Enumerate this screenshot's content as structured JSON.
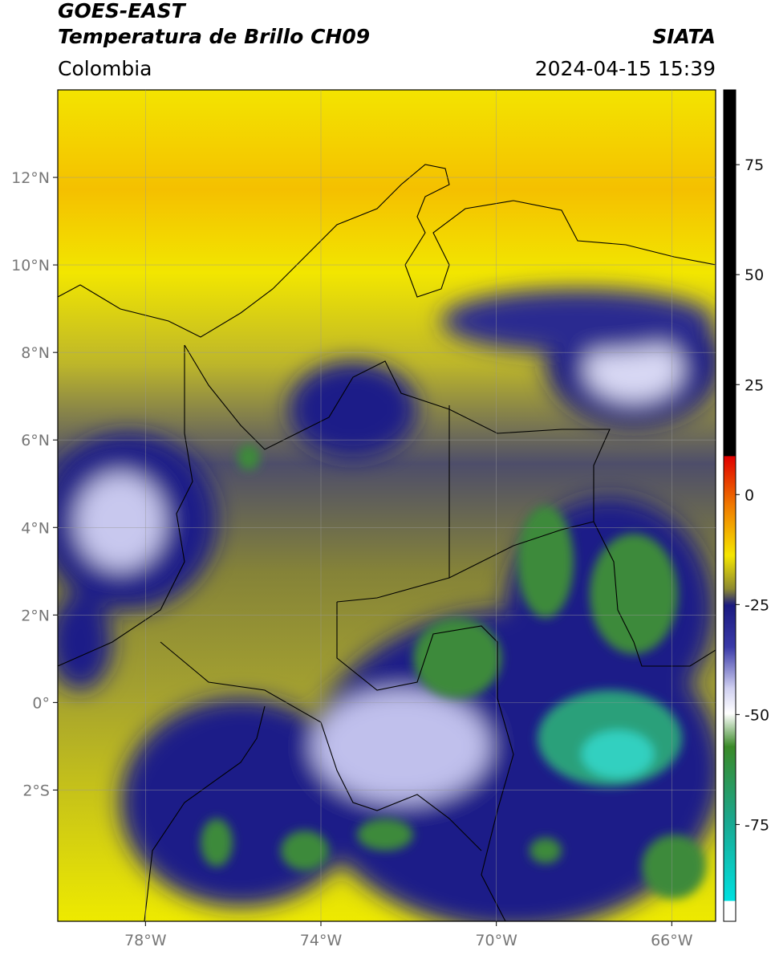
{
  "header": {
    "title": "GOES-EAST",
    "subtitle": "Temperatura de Brillo CH09",
    "region": "Colombia",
    "source": "SIATA",
    "datetime": "2024-04-15 15:39"
  },
  "map": {
    "xlim": [
      -80,
      -65
    ],
    "ylim": [
      -5,
      14
    ],
    "xticks": [
      {
        "value": -78,
        "label": "78°W"
      },
      {
        "value": -74,
        "label": "74°W"
      },
      {
        "value": -70,
        "label": "70°W"
      },
      {
        "value": -66,
        "label": "66°W"
      }
    ],
    "yticks": [
      {
        "value": 12,
        "label": "12°N"
      },
      {
        "value": 10,
        "label": "10°N"
      },
      {
        "value": 8,
        "label": "8°N"
      },
      {
        "value": 6,
        "label": "6°N"
      },
      {
        "value": 4,
        "label": "4°N"
      },
      {
        "value": 2,
        "label": "2°N"
      },
      {
        "value": 0,
        "label": "0°"
      },
      {
        "value": -2,
        "label": "2°S"
      }
    ],
    "grid": true
  },
  "colorbar": {
    "lim": [
      -97,
      92
    ],
    "ticks": [
      75,
      50,
      25,
      0,
      -25,
      -50,
      -75
    ]
  }
}
